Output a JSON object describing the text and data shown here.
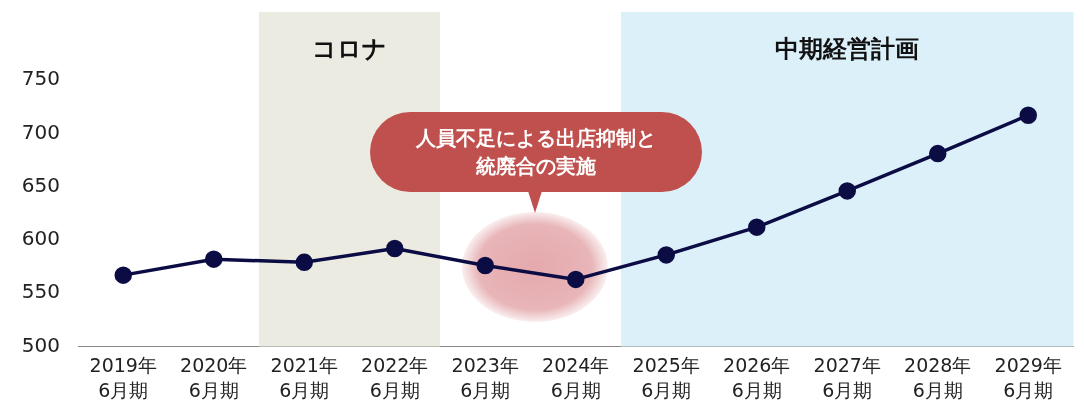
{
  "chart_data": {
    "type": "line",
    "categories": [
      "2019年\n6月期",
      "2020年\n6月期",
      "2021年\n6月期",
      "2022年\n6月期",
      "2023年\n6月期",
      "2024年\n6月期",
      "2025年\n6月期",
      "2026年\n6月期",
      "2027年\n6月期",
      "2028年\n6月期",
      "2029年\n6月期"
    ],
    "series": [
      {
        "color": "#0c0c45",
        "values": [
          567,
          582,
          579,
          592,
          576,
          563,
          586,
          612,
          646,
          681,
          717
        ]
      }
    ],
    "ylim": [
      500,
      750
    ],
    "yticks": [
      500,
      550,
      600,
      650,
      700,
      750
    ],
    "grid": false,
    "legend": false,
    "marker": "circle",
    "line_style": "solid",
    "bands": [
      {
        "axis": "x",
        "from": "2021年\n6月期",
        "to": "2022年\n6月期",
        "label": "コロナ",
        "color": "#ecebe2"
      },
      {
        "axis": "x",
        "from": "2025年\n6月期",
        "to": "2029年\n6月期",
        "label": "中期経営計画",
        "color": "#dcf0fa"
      }
    ],
    "annotations": [
      "人員不足による出店抑制と統廃合の実施"
    ]
  }
}
